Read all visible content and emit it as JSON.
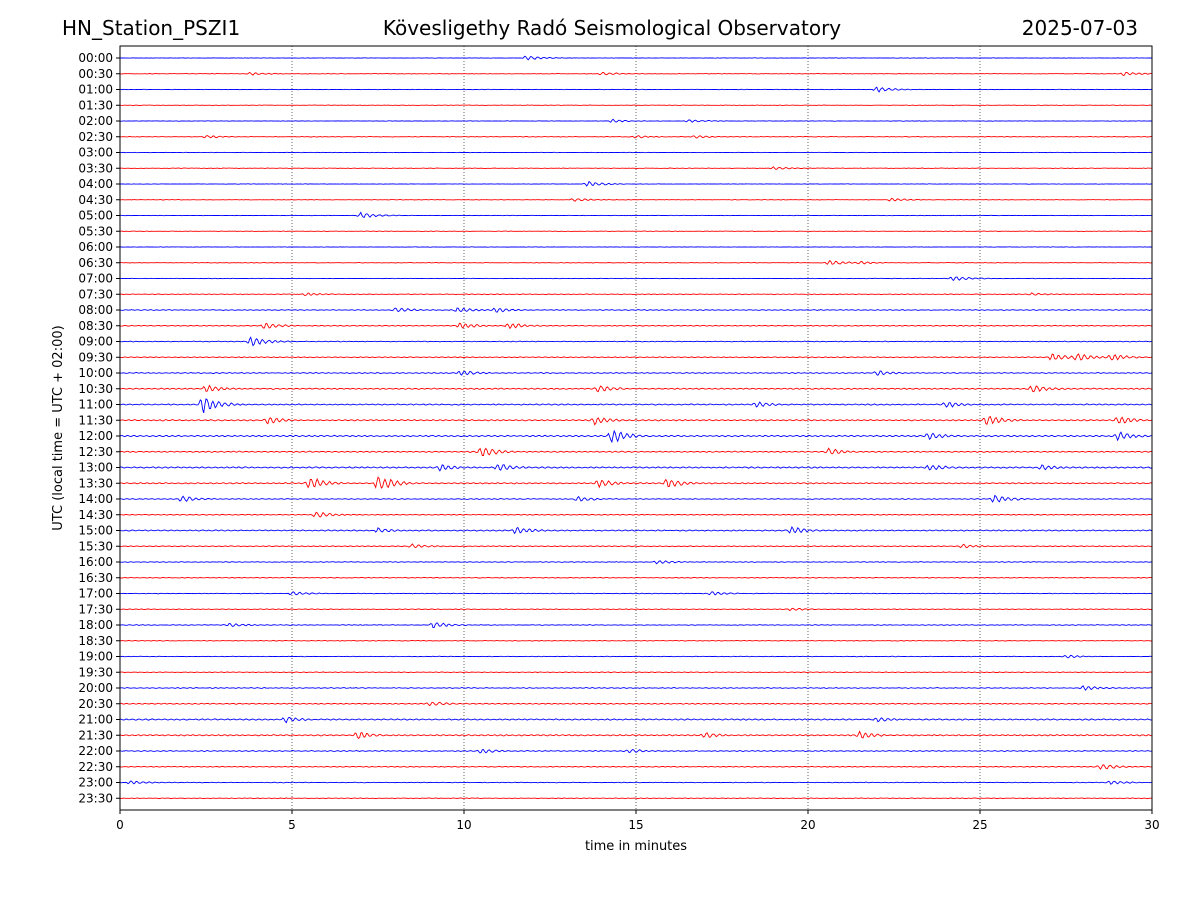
{
  "header": {
    "station": "HN_Station_PSZI1",
    "observatory": "Kövesligethy Radó Seismological Observatory",
    "date": "2025-07-03"
  },
  "chart_data": {
    "type": "line",
    "title": "Kövesligethy Radó Seismological Observatory",
    "xlabel": "time in minutes",
    "ylabel": "UTC (local time = UTC + 02:00)",
    "xlim": [
      0,
      30
    ],
    "x_ticks": [
      "0",
      "5",
      "10",
      "15",
      "20",
      "25",
      "30"
    ],
    "grid": "vertical dotted at 5-minute intervals",
    "trace_colors": [
      "#0000ff",
      "#ff0000"
    ],
    "traces": [
      {
        "label": "00:00",
        "activity": 0.12,
        "events": [
          {
            "t": 11.8,
            "amp": 0.4
          }
        ]
      },
      {
        "label": "00:30",
        "activity": 0.12,
        "events": [
          {
            "t": 3.8,
            "amp": 0.3
          },
          {
            "t": 14.0,
            "amp": 0.3
          },
          {
            "t": 29.2,
            "amp": 0.4
          }
        ]
      },
      {
        "label": "01:00",
        "activity": 0.15,
        "events": [
          {
            "t": 22.0,
            "amp": 0.5
          }
        ]
      },
      {
        "label": "01:30",
        "activity": 0.1,
        "events": []
      },
      {
        "label": "02:00",
        "activity": 0.15,
        "events": [
          {
            "t": 14.3,
            "amp": 0.3
          },
          {
            "t": 16.5,
            "amp": 0.3
          }
        ]
      },
      {
        "label": "02:30",
        "activity": 0.15,
        "events": [
          {
            "t": 2.5,
            "amp": 0.3
          },
          {
            "t": 15.0,
            "amp": 0.3
          },
          {
            "t": 16.7,
            "amp": 0.3
          }
        ]
      },
      {
        "label": "03:00",
        "activity": 0.12,
        "events": []
      },
      {
        "label": "03:30",
        "activity": 0.12,
        "events": [
          {
            "t": 19.0,
            "amp": 0.3
          }
        ]
      },
      {
        "label": "04:00",
        "activity": 0.12,
        "events": [
          {
            "t": 13.6,
            "amp": 0.5
          }
        ]
      },
      {
        "label": "04:30",
        "activity": 0.1,
        "events": [
          {
            "t": 13.2,
            "amp": 0.3
          },
          {
            "t": 22.4,
            "amp": 0.3
          }
        ]
      },
      {
        "label": "05:00",
        "activity": 0.12,
        "events": [
          {
            "t": 7.0,
            "amp": 0.6
          }
        ]
      },
      {
        "label": "05:30",
        "activity": 0.1,
        "events": []
      },
      {
        "label": "06:00",
        "activity": 0.12,
        "events": []
      },
      {
        "label": "06:30",
        "activity": 0.12,
        "events": [
          {
            "t": 20.6,
            "amp": 0.5
          },
          {
            "t": 21.5,
            "amp": 0.3
          }
        ]
      },
      {
        "label": "07:00",
        "activity": 0.15,
        "events": [
          {
            "t": 24.2,
            "amp": 0.5
          }
        ]
      },
      {
        "label": "07:30",
        "activity": 0.2,
        "events": [
          {
            "t": 5.4,
            "amp": 0.3
          },
          {
            "t": 26.5,
            "amp": 0.3
          }
        ]
      },
      {
        "label": "08:00",
        "activity": 0.35,
        "events": [
          {
            "t": 8.0,
            "amp": 0.5
          },
          {
            "t": 9.8,
            "amp": 0.5
          },
          {
            "t": 10.9,
            "amp": 0.5
          }
        ]
      },
      {
        "label": "08:30",
        "activity": 0.35,
        "events": [
          {
            "t": 4.2,
            "amp": 0.6
          },
          {
            "t": 9.9,
            "amp": 0.6
          },
          {
            "t": 11.3,
            "amp": 0.6
          }
        ]
      },
      {
        "label": "09:00",
        "activity": 0.3,
        "events": [
          {
            "t": 3.8,
            "amp": 1.0
          }
        ]
      },
      {
        "label": "09:30",
        "activity": 0.35,
        "events": [
          {
            "t": 27.1,
            "amp": 0.7
          },
          {
            "t": 27.8,
            "amp": 0.8
          },
          {
            "t": 28.8,
            "amp": 0.7
          }
        ]
      },
      {
        "label": "10:00",
        "activity": 0.4,
        "events": [
          {
            "t": 9.9,
            "amp": 0.6
          },
          {
            "t": 22.0,
            "amp": 0.5
          }
        ]
      },
      {
        "label": "10:30",
        "activity": 0.55,
        "events": [
          {
            "t": 2.5,
            "amp": 0.7
          },
          {
            "t": 13.9,
            "amp": 0.7
          },
          {
            "t": 26.5,
            "amp": 0.8
          }
        ]
      },
      {
        "label": "11:00",
        "activity": 0.5,
        "events": [
          {
            "t": 2.4,
            "amp": 1.6
          },
          {
            "t": 18.5,
            "amp": 0.6
          },
          {
            "t": 24.0,
            "amp": 0.6
          }
        ]
      },
      {
        "label": "11:30",
        "activity": 0.6,
        "events": [
          {
            "t": 4.3,
            "amp": 0.7
          },
          {
            "t": 13.8,
            "amp": 0.8
          },
          {
            "t": 25.2,
            "amp": 1.0
          },
          {
            "t": 29.0,
            "amp": 0.8
          }
        ]
      },
      {
        "label": "12:00",
        "activity": 0.6,
        "events": [
          {
            "t": 14.3,
            "amp": 1.3
          },
          {
            "t": 23.5,
            "amp": 0.8
          },
          {
            "t": 29.0,
            "amp": 0.8
          }
        ]
      },
      {
        "label": "12:30",
        "activity": 0.55,
        "events": [
          {
            "t": 10.5,
            "amp": 1.1
          },
          {
            "t": 20.6,
            "amp": 0.7
          }
        ]
      },
      {
        "label": "13:00",
        "activity": 0.6,
        "events": [
          {
            "t": 9.3,
            "amp": 0.6
          },
          {
            "t": 11.0,
            "amp": 0.8
          },
          {
            "t": 23.5,
            "amp": 0.7
          },
          {
            "t": 26.8,
            "amp": 0.6
          }
        ]
      },
      {
        "label": "13:30",
        "activity": 0.55,
        "events": [
          {
            "t": 5.5,
            "amp": 1.2
          },
          {
            "t": 7.5,
            "amp": 1.5
          },
          {
            "t": 13.9,
            "amp": 0.8
          },
          {
            "t": 15.9,
            "amp": 0.9
          }
        ]
      },
      {
        "label": "14:00",
        "activity": 0.35,
        "events": [
          {
            "t": 1.8,
            "amp": 0.6
          },
          {
            "t": 13.3,
            "amp": 0.5
          },
          {
            "t": 25.4,
            "amp": 0.8
          }
        ]
      },
      {
        "label": "14:30",
        "activity": 0.35,
        "events": [
          {
            "t": 5.7,
            "amp": 0.6
          }
        ]
      },
      {
        "label": "15:00",
        "activity": 0.5,
        "events": [
          {
            "t": 7.5,
            "amp": 0.5
          },
          {
            "t": 11.5,
            "amp": 0.7
          },
          {
            "t": 19.5,
            "amp": 0.7
          }
        ]
      },
      {
        "label": "15:30",
        "activity": 0.35,
        "events": [
          {
            "t": 8.5,
            "amp": 0.4
          },
          {
            "t": 24.5,
            "amp": 0.4
          }
        ]
      },
      {
        "label": "16:00",
        "activity": 0.3,
        "events": [
          {
            "t": 15.6,
            "amp": 0.4
          }
        ]
      },
      {
        "label": "16:30",
        "activity": 0.25,
        "events": []
      },
      {
        "label": "17:00",
        "activity": 0.25,
        "events": [
          {
            "t": 5.0,
            "amp": 0.4
          },
          {
            "t": 17.2,
            "amp": 0.4
          }
        ]
      },
      {
        "label": "17:30",
        "activity": 0.25,
        "events": [
          {
            "t": 19.5,
            "amp": 0.3
          }
        ]
      },
      {
        "label": "18:00",
        "activity": 0.3,
        "events": [
          {
            "t": 3.2,
            "amp": 0.4
          },
          {
            "t": 9.1,
            "amp": 0.6
          }
        ]
      },
      {
        "label": "18:30",
        "activity": 0.2,
        "events": []
      },
      {
        "label": "19:00",
        "activity": 0.2,
        "events": [
          {
            "t": 27.5,
            "amp": 0.3
          }
        ]
      },
      {
        "label": "19:30",
        "activity": 0.25,
        "events": []
      },
      {
        "label": "20:00",
        "activity": 0.35,
        "events": [
          {
            "t": 28.0,
            "amp": 0.5
          }
        ]
      },
      {
        "label": "20:30",
        "activity": 0.45,
        "events": [
          {
            "t": 9.0,
            "amp": 0.5
          }
        ]
      },
      {
        "label": "21:00",
        "activity": 0.55,
        "events": [
          {
            "t": 4.8,
            "amp": 0.6
          },
          {
            "t": 22.0,
            "amp": 0.5
          }
        ]
      },
      {
        "label": "21:30",
        "activity": 0.6,
        "events": [
          {
            "t": 6.9,
            "amp": 0.7
          },
          {
            "t": 17.0,
            "amp": 0.6
          },
          {
            "t": 21.5,
            "amp": 0.7
          }
        ]
      },
      {
        "label": "22:00",
        "activity": 0.4,
        "events": [
          {
            "t": 10.5,
            "amp": 0.5
          },
          {
            "t": 14.8,
            "amp": 0.4
          }
        ]
      },
      {
        "label": "22:30",
        "activity": 0.35,
        "events": [
          {
            "t": 28.5,
            "amp": 0.6
          }
        ]
      },
      {
        "label": "23:00",
        "activity": 0.25,
        "events": [
          {
            "t": 0.3,
            "amp": 0.4
          },
          {
            "t": 28.8,
            "amp": 0.4
          }
        ]
      },
      {
        "label": "23:30",
        "activity": 0.2,
        "events": []
      }
    ]
  }
}
